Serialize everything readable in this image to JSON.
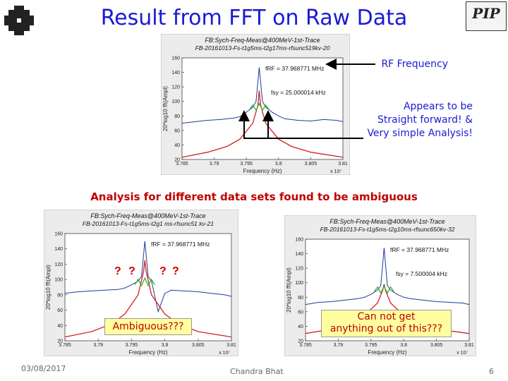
{
  "slide": {
    "title": "Result from FFT on Raw Data",
    "callout_rf": "RF Frequency",
    "callout_simple_1": "Appears to be",
    "callout_simple_2": "Straight forward! &",
    "callout_simple_3": "Very simple Analysis!",
    "subtitle": "Analysis for different data sets found to be ambiguous",
    "question_marks": [
      "?",
      "?",
      "?",
      "?"
    ],
    "box_ambiguous": "Ambiguous???",
    "box_cannot_1": "Can not get",
    "box_cannot_2": "anything out of this???",
    "date": "03/08/2017",
    "author": "Chandra Bhat",
    "page_number": "6",
    "logo_right_text": "PIP"
  },
  "colors": {
    "title": "#1a1ad6",
    "subtitle": "#c00000",
    "trace": "#1f3a9a",
    "envelope": "#d42020",
    "fit": "#2fb52f",
    "highlight_box": "#ffffa0"
  },
  "chart_data": [
    {
      "type": "line",
      "title_line1": "FB:Sych-Freq-Meas@400MeV-1st-Trace",
      "title_line2": "FB-20161013-Fs-t1g5ms-t2g17ms-rfsunc519kv-20",
      "xlabel": "Frequency (Hz)",
      "x_multiplier": "x 10⁷",
      "ylabel": "20*log10 fft(Ampl)",
      "xlim": [
        3.785,
        3.81
      ],
      "ylim": [
        20,
        160
      ],
      "x_ticks": [
        "3.785",
        "3.79",
        "3.795",
        "3.8",
        "3.805",
        "3.81"
      ],
      "y_ticks": [
        "20",
        "40",
        "60",
        "80",
        "100",
        "120",
        "140",
        "160"
      ],
      "annotations": [
        "fRF = 37.968771 MHz",
        "fsy = 25.000014 kHz"
      ],
      "series": [
        {
          "values_x": [
            3.785,
            3.787,
            3.789,
            3.791,
            3.793,
            3.794,
            3.795,
            3.796,
            3.7965,
            3.797,
            3.7975,
            3.798,
            3.799,
            3.8,
            3.801,
            3.803,
            3.805,
            3.807,
            3.809,
            3.81
          ],
          "values_y": [
            70,
            72,
            74,
            75,
            77,
            79,
            85,
            92,
            100,
            147,
            100,
            92,
            85,
            80,
            76,
            74,
            73,
            75,
            74,
            72
          ]
        },
        {
          "values_x": [
            3.785,
            3.789,
            3.792,
            3.794,
            3.796,
            3.7968,
            3.797,
            3.7972,
            3.798,
            3.8,
            3.802,
            3.805,
            3.81
          ],
          "values_y": [
            23,
            30,
            38,
            48,
            70,
            95,
            115,
            95,
            70,
            48,
            38,
            30,
            23
          ]
        },
        {
          "values_x": [
            3.7955,
            3.796,
            3.7965,
            3.797,
            3.7975,
            3.798,
            3.7985
          ],
          "values_y": [
            89,
            95,
            88,
            97,
            88,
            95,
            89
          ]
        }
      ]
    },
    {
      "type": "line",
      "title_line1": "FB:Sych-Freq-Meas@400MeV-1st-Trace",
      "title_line2": "FB-20161013-Fs-t1g5ms-t2g1 ms-rfsunc51 kv-21",
      "xlabel": "Frequency (Hz)",
      "x_multiplier": "x 10⁷",
      "ylabel": "20*log10 fft(Ampl)",
      "xlim": [
        3.785,
        3.81
      ],
      "ylim": [
        20,
        160
      ],
      "x_ticks": [
        "3.785",
        "3.79",
        "3.795",
        "3.8",
        "3.805",
        "3.81"
      ],
      "y_ticks": [
        "20",
        "40",
        "60",
        "80",
        "100",
        "120",
        "140",
        "160"
      ],
      "annotations": [
        "fRF = 37.968771 MHz"
      ],
      "series": [
        {
          "values_x": [
            3.785,
            3.787,
            3.789,
            3.791,
            3.793,
            3.794,
            3.795,
            3.796,
            3.7965,
            3.797,
            3.7975,
            3.798,
            3.799,
            3.8,
            3.801,
            3.803,
            3.805,
            3.807,
            3.809,
            3.81
          ],
          "values_y": [
            82,
            84,
            85,
            86,
            87,
            89,
            93,
            98,
            104,
            150,
            104,
            98,
            58,
            82,
            86,
            85,
            84,
            82,
            80,
            78
          ]
        },
        {
          "values_x": [
            3.785,
            3.789,
            3.792,
            3.794,
            3.796,
            3.7968,
            3.797,
            3.7972,
            3.798,
            3.8,
            3.802,
            3.805,
            3.81
          ],
          "values_y": [
            25,
            32,
            42,
            55,
            80,
            110,
            125,
            110,
            80,
            55,
            42,
            32,
            25
          ]
        },
        {
          "values_x": [
            3.7955,
            3.796,
            3.7965,
            3.797,
            3.7975,
            3.798,
            3.7985
          ],
          "values_y": [
            93,
            100,
            92,
            102,
            92,
            100,
            93
          ]
        }
      ]
    },
    {
      "type": "line",
      "title_line1": "FB:Sych-Freq-Meas@400MeV-1st-Trace",
      "title_line2": "FB-20161013-Fs-t1g5ms-t2g10ms-rfsunc650kv-32",
      "xlabel": "Frequency (Hz)",
      "x_multiplier": "x 10⁷",
      "ylabel": "20*log10 fft(Ampl)",
      "xlim": [
        3.785,
        3.81
      ],
      "ylim": [
        20,
        160
      ],
      "x_ticks": [
        "3.785",
        "3.79",
        "3.795",
        "3.8",
        "3.805",
        "3.81"
      ],
      "y_ticks": [
        "20",
        "40",
        "60",
        "80",
        "100",
        "120",
        "140",
        "160"
      ],
      "annotations": [
        "fRF = 37.968771 MHz",
        "fsy = 7.500004 kHz"
      ],
      "series": [
        {
          "values_x": [
            3.785,
            3.787,
            3.789,
            3.791,
            3.793,
            3.794,
            3.795,
            3.796,
            3.7965,
            3.797,
            3.7975,
            3.798,
            3.799,
            3.8,
            3.801,
            3.803,
            3.805,
            3.807,
            3.809,
            3.81
          ],
          "values_y": [
            70,
            73,
            74,
            76,
            78,
            80,
            84,
            90,
            96,
            148,
            96,
            90,
            84,
            80,
            78,
            76,
            74,
            73,
            72,
            70
          ]
        },
        {
          "values_x": [
            3.785,
            3.789,
            3.792,
            3.794,
            3.796,
            3.7968,
            3.797,
            3.7972,
            3.798,
            3.8,
            3.802,
            3.805,
            3.81
          ],
          "values_y": [
            30,
            36,
            44,
            55,
            72,
            90,
            98,
            90,
            72,
            55,
            44,
            36,
            30
          ]
        },
        {
          "values_x": [
            3.7955,
            3.796,
            3.7965,
            3.797,
            3.7975,
            3.798,
            3.7985
          ],
          "values_y": [
            88,
            94,
            86,
            95,
            86,
            94,
            88
          ]
        }
      ]
    }
  ]
}
